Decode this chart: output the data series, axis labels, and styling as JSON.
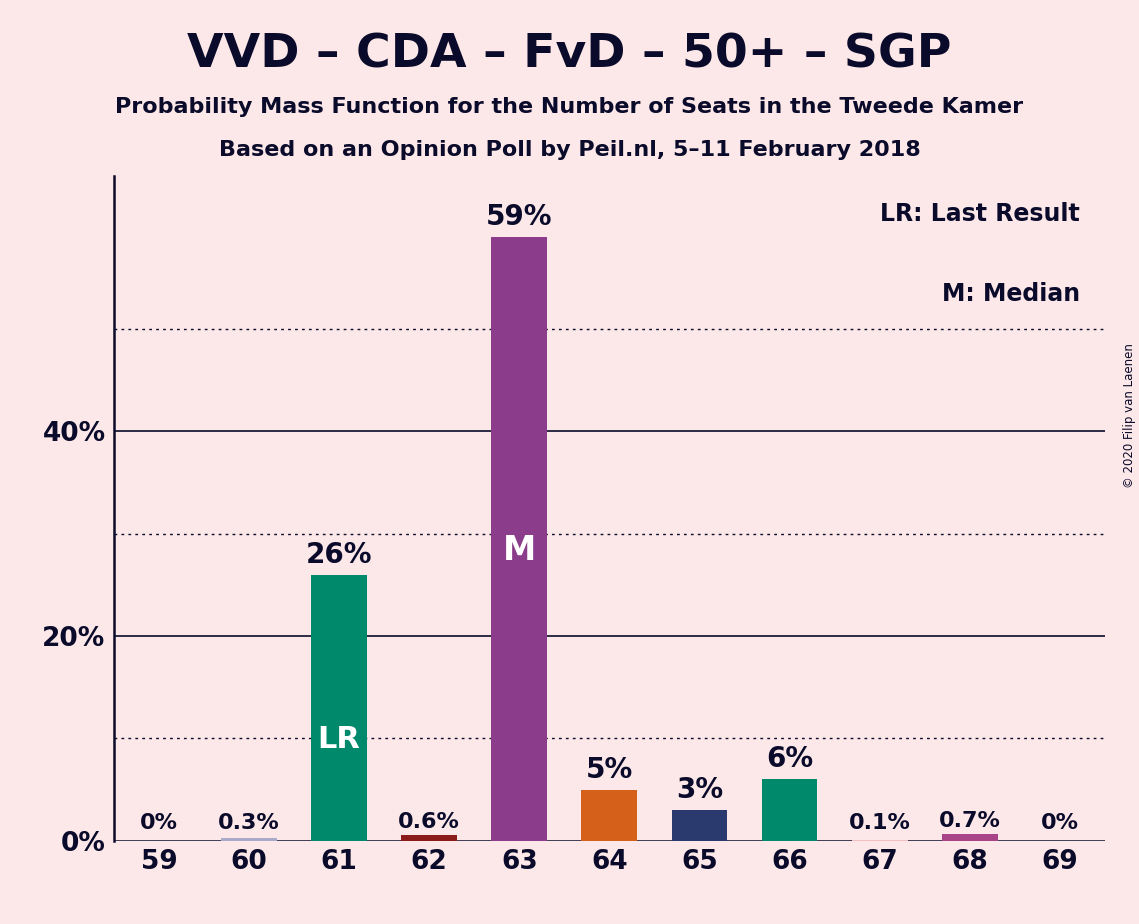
{
  "title": "VVD – CDA – FvD – 50+ – SGP",
  "subtitle": "Probability Mass Function for the Number of Seats in the Tweede Kamer",
  "subsubtitle": "Based on an Opinion Poll by Peil.nl, 5–11 February 2018",
  "copyright": "© 2020 Filip van Laenen",
  "seats": [
    59,
    60,
    61,
    62,
    63,
    64,
    65,
    66,
    67,
    68,
    69
  ],
  "probabilities": [
    0.0,
    0.3,
    26.0,
    0.6,
    59.0,
    5.0,
    3.0,
    6.0,
    0.1,
    0.7,
    0.0
  ],
  "labels": [
    "0%",
    "0.3%",
    "26%",
    "0.6%",
    "59%",
    "5%",
    "3%",
    "6%",
    "0.1%",
    "0.7%",
    "0%"
  ],
  "bar_colors": [
    "#f5c0c0",
    "#aaaacc",
    "#00896a",
    "#8b1a1a",
    "#8b3d8b",
    "#d4601a",
    "#2a3a6e",
    "#00896a",
    "#f5c0c0",
    "#aa4488",
    "#f5c0c0"
  ],
  "lr_index": 2,
  "median_index": 4,
  "lr_color": "#00896a",
  "median_color": "#8b3d8b",
  "background_color": "#fce8e8",
  "text_color": "#0a0a2a",
  "yticks": [
    0,
    20,
    40
  ],
  "ytick_labels": [
    "0%",
    "20%",
    "40%"
  ],
  "dotted_yticks": [
    10,
    30,
    50
  ],
  "ylim_max": 65,
  "legend_lr": "LR: Last Result",
  "legend_m": "M: Median"
}
